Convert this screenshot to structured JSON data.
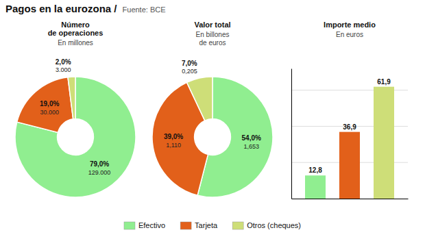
{
  "title": "Pagos en la eurozona /",
  "subtitle": "Fuente: BCE",
  "chart_data": [
    {
      "type": "pie",
      "title": "Número\nde operaciones",
      "subtitle": "En millones",
      "categories": [
        "Efectivo",
        "Tarjeta",
        "Otros (cheques)"
      ],
      "values": [
        79.0,
        19.0,
        2.0
      ],
      "value_labels": [
        "79,0%",
        "19,0%",
        "2,0%"
      ],
      "amounts": [
        129000,
        30000,
        3000
      ],
      "amount_labels": [
        "129.000",
        "30.000",
        "3.000"
      ],
      "colors": [
        "#90ee90",
        "#e2601a",
        "#cede78"
      ],
      "data_labels": true,
      "legend": "bottom"
    },
    {
      "type": "pie",
      "title": "Valor total",
      "subtitle": "En billones\nde euros",
      "values": [
        54.0,
        39.0,
        7.0
      ],
      "value_labels": [
        "54,0%",
        "39,0%",
        "7,0%"
      ],
      "amounts": [
        1.653,
        1.11,
        0.205
      ],
      "amount_labels": [
        "1,653",
        "1,110",
        "0,205"
      ],
      "colors": [
        "#90ee90",
        "#e2601a",
        "#cede78"
      ],
      "data_labels": true
    },
    {
      "type": "bar",
      "title": "Importe medio",
      "subtitle": "En euros",
      "categories": [
        null,
        null,
        null
      ],
      "values": [
        12.8,
        36.9,
        61.9
      ],
      "value_labels": [
        "12,8",
        "36,9",
        "61,9"
      ],
      "colors": [
        "#90ee90",
        "#e2601a",
        "#cede78"
      ],
      "ylim": [
        0,
        72
      ],
      "yticks": [
        20,
        40,
        60
      ],
      "grid": true,
      "data_labels": true,
      "tick_labels": false
    }
  ]
}
